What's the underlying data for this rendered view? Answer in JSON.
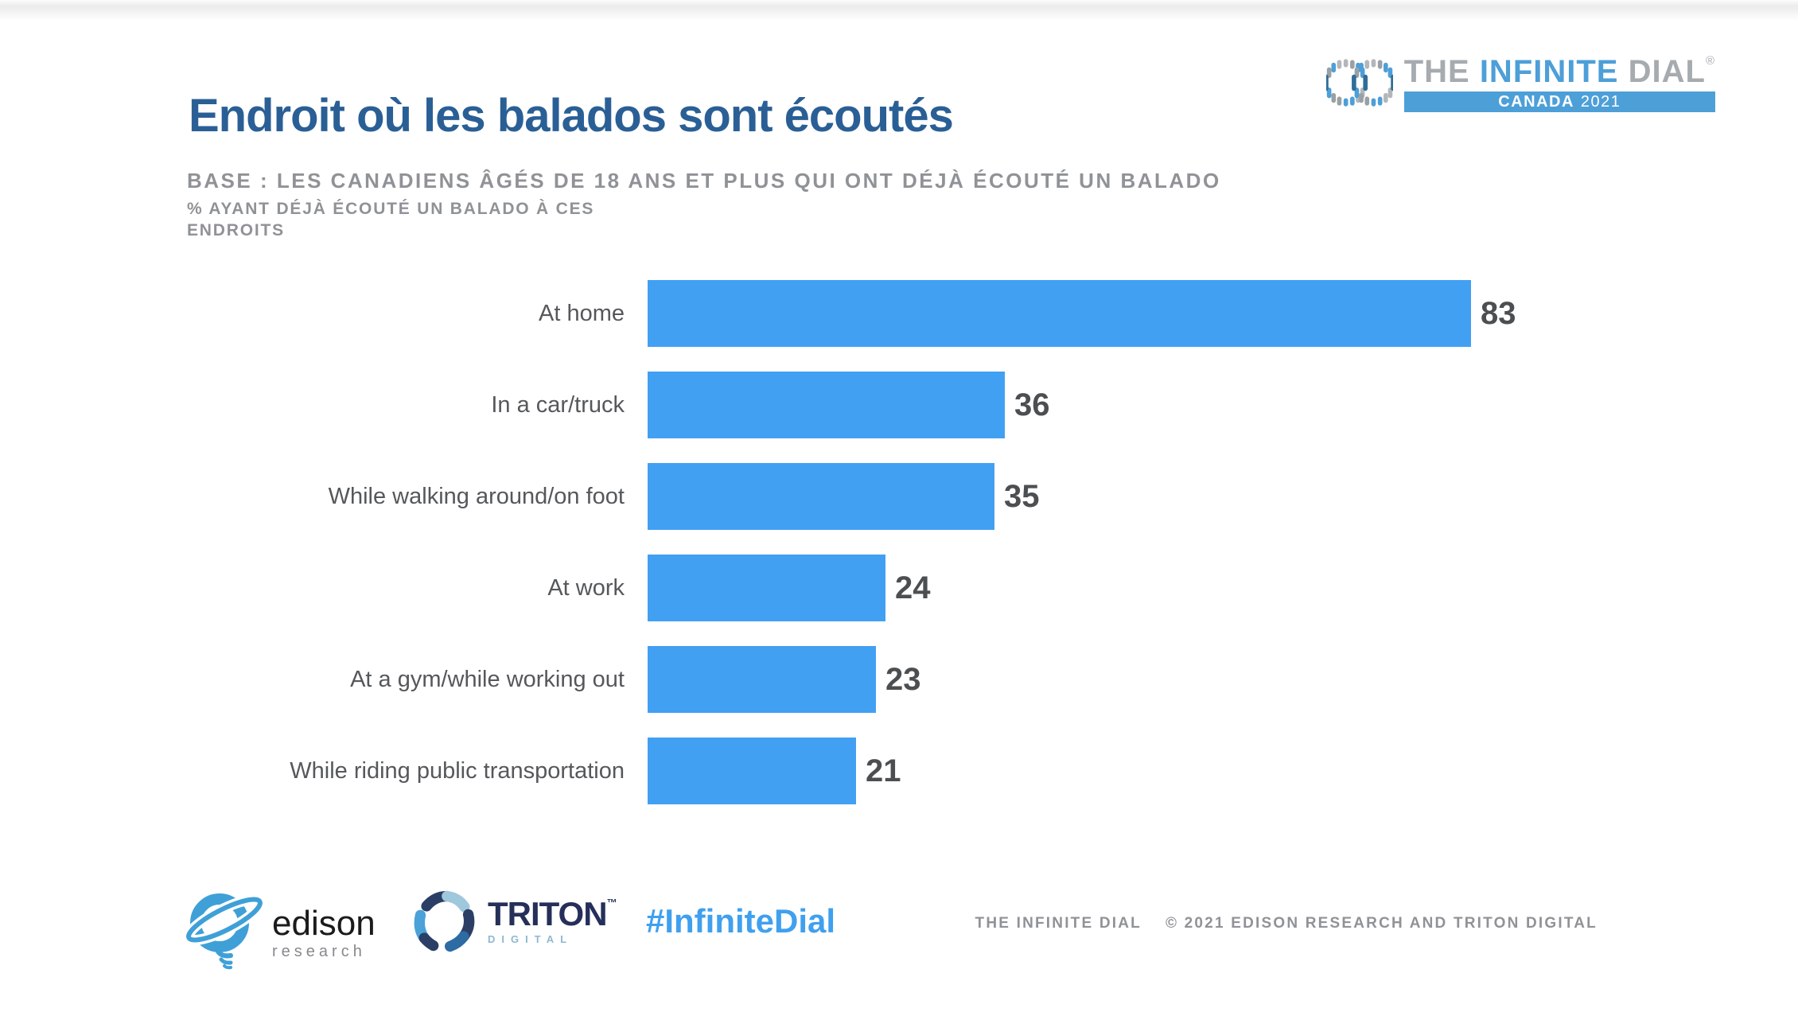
{
  "header": {
    "title": "Endroit où les balados sont écoutés",
    "base": "BASE : LES CANADIENS ÂGÉS DE 18 ANS ET PLUS QUI ONT DÉJÀ ÉCOUTÉ UN BALADO",
    "note_line1": "% AYANT DÉJÀ ÉCOUTÉ UN BALADO À CES",
    "note_line2": "ENDROITS",
    "title_color": "#2a5f96",
    "subtitle_color": "#8f9296"
  },
  "brand_logo": {
    "the": "THE",
    "infinite": "INFINITE",
    "dial": "DIAL",
    "registered": "®",
    "banner_country": "CANADA",
    "banner_year": "2021",
    "banner_bg": "#4d9fd8",
    "accent_blue": "#4d9fd8",
    "gray": "#a6abb0"
  },
  "chart_data": {
    "type": "bar",
    "orientation": "horizontal",
    "title": "Endroit où les balados sont écoutés",
    "categories": [
      "At home",
      "In a car/truck",
      "While walking around/on foot",
      "At work",
      "At a gym/while working out",
      "While riding public transportation"
    ],
    "values": [
      83,
      36,
      35,
      24,
      23,
      21
    ],
    "xlim": [
      0,
      100
    ],
    "xlabel": "",
    "ylabel": "",
    "grid": false,
    "legend": false,
    "axes_hidden": true,
    "bar_color": "#42a0f3",
    "label_color": "#55585b",
    "value_color": "#4c4f52"
  },
  "footer": {
    "hashtag": "#InfiniteDial",
    "hashtag_color": "#3fa0ef",
    "copyright_brand": "THE INFINITE DIAL",
    "copyright_text": "© 2021 EDISON RESEARCH AND TRITON DIGITAL",
    "edison": {
      "name": "edison",
      "subtitle": "research"
    },
    "triton": {
      "name": "TRITON",
      "subtitle": "DIGITAL",
      "tm": "™"
    }
  }
}
